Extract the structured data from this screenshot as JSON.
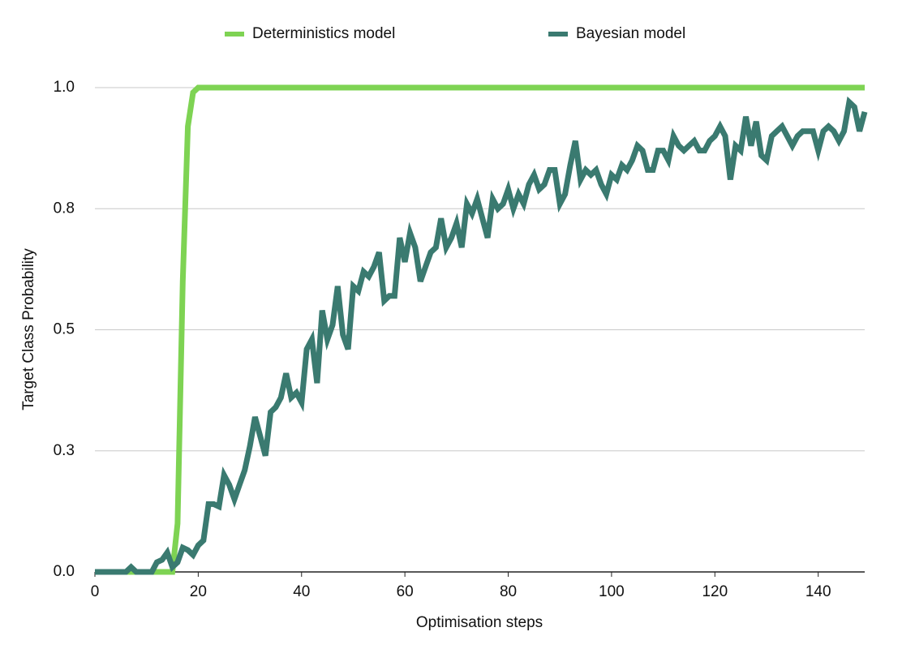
{
  "chart_data": {
    "type": "line",
    "x_label": "Optimisation steps",
    "y_label": "Target Class Probability",
    "x": [
      0,
      1,
      2,
      3,
      4,
      5,
      6,
      7,
      8,
      9,
      10,
      11,
      12,
      13,
      14,
      15,
      16,
      17,
      18,
      19,
      20,
      21,
      22,
      23,
      24,
      25,
      26,
      27,
      28,
      29,
      30,
      31,
      32,
      33,
      34,
      35,
      36,
      37,
      38,
      39,
      40,
      41,
      42,
      43,
      44,
      45,
      46,
      47,
      48,
      49,
      50,
      51,
      52,
      53,
      54,
      55,
      56,
      57,
      58,
      59,
      60,
      61,
      62,
      63,
      64,
      65,
      66,
      67,
      68,
      69,
      70,
      71,
      72,
      73,
      74,
      75,
      76,
      77,
      78,
      79,
      80,
      81,
      82,
      83,
      84,
      85,
      86,
      87,
      88,
      89,
      90,
      91,
      92,
      93,
      94,
      95,
      96,
      97,
      98,
      99,
      100,
      101,
      102,
      103,
      104,
      105,
      106,
      107,
      108,
      109,
      110,
      111,
      112,
      113,
      114,
      115,
      116,
      117,
      118,
      119,
      120,
      121,
      122,
      123,
      124,
      125,
      126,
      127,
      128,
      129,
      130,
      131,
      132,
      133,
      134,
      135,
      136,
      137,
      138,
      139,
      140,
      141,
      142,
      143,
      144,
      145,
      146,
      147,
      148,
      149
    ],
    "series": [
      {
        "name": "Deterministics model",
        "color": "#7ed353",
        "values": [
          0,
          0,
          0,
          0,
          0,
          0,
          0,
          0,
          0,
          0,
          0,
          0,
          0,
          0,
          0,
          0,
          0.1,
          0.6,
          0.92,
          0.99,
          1,
          1,
          1,
          1,
          1,
          1,
          1,
          1,
          1,
          1,
          1,
          1,
          1,
          1,
          1,
          1,
          1,
          1,
          1,
          1,
          1,
          1,
          1,
          1,
          1,
          1,
          1,
          1,
          1,
          1,
          1,
          1,
          1,
          1,
          1,
          1,
          1,
          1,
          1,
          1,
          1,
          1,
          1,
          1,
          1,
          1,
          1,
          1,
          1,
          1,
          1,
          1,
          1,
          1,
          1,
          1,
          1,
          1,
          1,
          1,
          1,
          1,
          1,
          1,
          1,
          1,
          1,
          1,
          1,
          1,
          1,
          1,
          1,
          1,
          1,
          1,
          1,
          1,
          1,
          1,
          1,
          1,
          1,
          1,
          1,
          1,
          1,
          1,
          1,
          1,
          1,
          1,
          1,
          1,
          1,
          1,
          1,
          1,
          1,
          1,
          1,
          1,
          1,
          1,
          1,
          1,
          1,
          1,
          1,
          1,
          1,
          1,
          1,
          1,
          1,
          1,
          1,
          1,
          1,
          1,
          1,
          1,
          1,
          1,
          1,
          1,
          1,
          1,
          1,
          1
        ]
      },
      {
        "name": "Bayesian model",
        "color": "#3a7a70",
        "values": [
          0,
          0,
          0,
          0,
          0,
          0,
          0,
          0.01,
          0,
          0,
          0,
          0,
          0.02,
          0.025,
          0.04,
          0.01,
          0.02,
          0.05,
          0.045,
          0.035,
          0.055,
          0.065,
          0.14,
          0.14,
          0.135,
          0.2,
          0.18,
          0.15,
          0.18,
          0.21,
          0.26,
          0.32,
          0.28,
          0.24,
          0.33,
          0.34,
          0.36,
          0.41,
          0.36,
          0.37,
          0.35,
          0.46,
          0.48,
          0.39,
          0.54,
          0.48,
          0.51,
          0.59,
          0.49,
          0.46,
          0.59,
          0.58,
          0.62,
          0.61,
          0.63,
          0.66,
          0.56,
          0.57,
          0.57,
          0.69,
          0.64,
          0.7,
          0.67,
          0.6,
          0.63,
          0.66,
          0.67,
          0.73,
          0.67,
          0.69,
          0.72,
          0.67,
          0.76,
          0.74,
          0.77,
          0.73,
          0.69,
          0.77,
          0.75,
          0.76,
          0.79,
          0.75,
          0.78,
          0.76,
          0.8,
          0.82,
          0.79,
          0.8,
          0.83,
          0.83,
          0.76,
          0.78,
          0.84,
          0.89,
          0.81,
          0.83,
          0.82,
          0.83,
          0.8,
          0.78,
          0.82,
          0.81,
          0.84,
          0.83,
          0.85,
          0.88,
          0.87,
          0.83,
          0.83,
          0.87,
          0.87,
          0.85,
          0.9,
          0.88,
          0.87,
          0.88,
          0.89,
          0.87,
          0.87,
          0.89,
          0.9,
          0.92,
          0.9,
          0.81,
          0.88,
          0.87,
          0.94,
          0.88,
          0.93,
          0.86,
          0.85,
          0.9,
          0.91,
          0.92,
          0.9,
          0.88,
          0.9,
          0.91,
          0.91,
          0.91,
          0.87,
          0.91,
          0.92,
          0.91,
          0.89,
          0.91,
          0.97,
          0.96,
          0.91,
          0.95
        ]
      }
    ],
    "xlim": [
      0,
      149
    ],
    "xticks": [
      0,
      20,
      40,
      60,
      80,
      100,
      120,
      140
    ],
    "ylim": [
      0,
      1
    ],
    "yticks": [
      {
        "value": 0,
        "label": "0.0"
      },
      {
        "value": 0.25,
        "label": "0.3"
      },
      0.5,
      {
        "value": 0.75,
        "label": "0.8"
      },
      {
        "value": 1,
        "label": "1.0"
      }
    ],
    "grid": true,
    "legend": "top"
  }
}
